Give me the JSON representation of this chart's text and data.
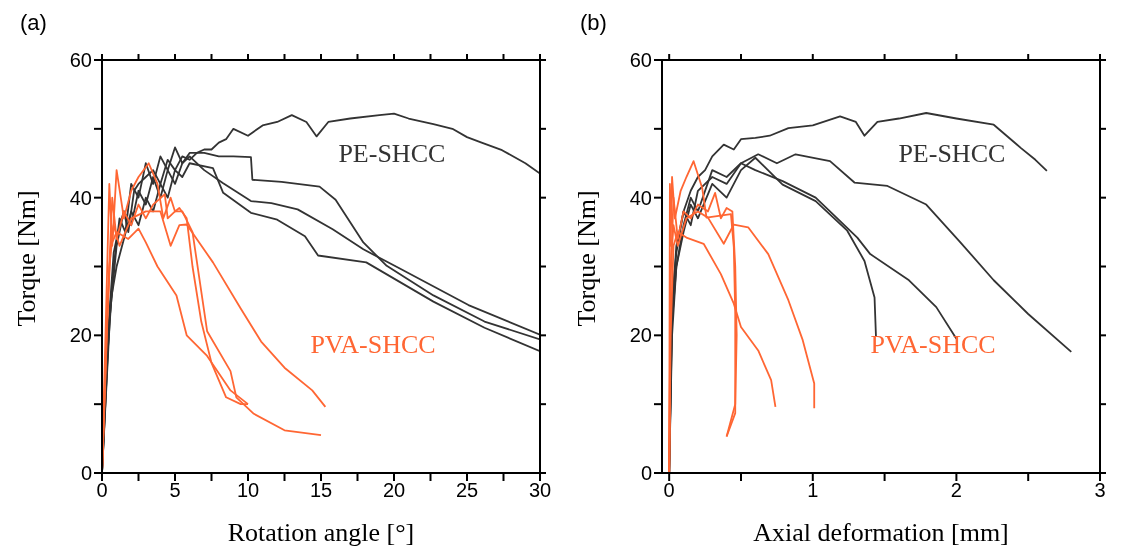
{
  "chart_data": [
    {
      "type": "line",
      "title": "(a)",
      "xlabel": "Rotation angle [°]",
      "ylabel": "Torque [Nm]",
      "xlim": [
        0,
        30
      ],
      "ylim": [
        0,
        60
      ],
      "xticks": [
        0,
        {
          "value": 2.5,
          "label": null
        },
        5,
        {
          "value": 7.5,
          "label": null
        },
        10,
        {
          "value": 12.5,
          "label": null
        },
        15,
        {
          "value": 17.5,
          "label": null
        },
        20,
        {
          "value": 22.5,
          "label": null
        },
        25,
        {
          "value": 27.5,
          "label": null
        },
        30
      ],
      "yticks": [
        0,
        {
          "value": 10,
          "label": null
        },
        20,
        {
          "value": 30,
          "label": null
        },
        40,
        {
          "value": 50,
          "label": null
        },
        60
      ],
      "annotations": [
        "PE-SHCC",
        "PVA-SHCC"
      ],
      "series": [
        {
          "color": "#333333",
          "x": [
            0,
            0.4,
            0.8,
            1.2,
            1.5,
            1.8,
            2.2,
            2.5,
            3,
            3.5,
            4,
            4.5,
            5,
            5.5,
            6,
            6.5,
            7,
            7.5,
            8,
            8.5,
            9,
            10,
            11,
            12,
            13,
            14,
            14.7,
            15.5,
            17,
            19,
            20,
            21,
            22.7,
            24,
            25,
            26,
            27.4,
            29,
            30
          ],
          "values": [
            0,
            20,
            32,
            36,
            38,
            35,
            41,
            42,
            43,
            44,
            42,
            45.5,
            44,
            46,
            45.5,
            46.5,
            47,
            47,
            48,
            48.5,
            50,
            49,
            50.5,
            51,
            52,
            51,
            48.9,
            51,
            51.5,
            52,
            52.2,
            51.5,
            50.7,
            50,
            48.8,
            48,
            46.9,
            45,
            43.5
          ]
        },
        {
          "color": "#333333",
          "x": [
            0,
            0.4,
            0.8,
            1.2,
            1.6,
            2,
            2.5,
            3,
            3.5,
            4,
            4.5,
            5,
            5.5,
            6,
            7,
            8,
            9,
            10.2,
            10.3,
            12.3,
            14.9,
            16,
            17.9,
            19.5,
            22.7,
            26.2,
            30
          ],
          "values": [
            0,
            18,
            30,
            37,
            35,
            42,
            40,
            45,
            42,
            46,
            44,
            47.3,
            45,
            46.5,
            46.5,
            46,
            46,
            45.9,
            42.6,
            42.3,
            41.6,
            39.7,
            33.5,
            30.1,
            25.8,
            22,
            19.4
          ]
        },
        {
          "color": "#333333",
          "x": [
            0,
            0.5,
            1,
            1.5,
            2,
            2.5,
            3,
            3.5,
            4,
            4.5,
            5,
            5.5,
            6,
            7,
            8.3,
            10.2,
            11.6,
            13.4,
            15.8,
            17.9,
            20.4,
            25.1,
            30
          ],
          "values": [
            0,
            22,
            33,
            38,
            36,
            41,
            39,
            43,
            40,
            44,
            42,
            45,
            46,
            44,
            42.1,
            39.5,
            39.2,
            38.3,
            35.4,
            32.5,
            29.7,
            24.4,
            20.1
          ]
        },
        {
          "color": "#333333",
          "x": [
            0,
            0.6,
            1,
            1.5,
            2,
            2.5,
            3,
            3.5,
            4,
            4.5,
            5,
            5.5,
            6,
            7.6,
            8.3,
            10.2,
            12,
            13.9,
            14.8,
            18.1,
            22.7,
            26.2,
            30
          ],
          "values": [
            0,
            25,
            30,
            34,
            38,
            36,
            40,
            38,
            42,
            40,
            44,
            43,
            45,
            44.3,
            40.7,
            37.8,
            36.8,
            34.4,
            31.6,
            30.6,
            24.9,
            21.1,
            17.7
          ]
        },
        {
          "color": "#ff6633",
          "x": [
            0,
            0.3,
            0.6,
            1,
            1.8,
            2.5,
            3,
            3.8,
            5.1,
            5.8,
            7.2,
            8.8,
            10
          ],
          "values": [
            0,
            20,
            33,
            35,
            34,
            35.5,
            33.5,
            30,
            25.8,
            20,
            17,
            12,
            10
          ]
        },
        {
          "color": "#ff6633",
          "x": [
            0,
            0.4,
            0.7,
            1,
            1.5,
            2,
            2.5,
            3,
            3.5,
            4.3,
            4.5,
            5,
            5.5,
            6.2,
            7.2,
            8.8,
            9.2,
            10.4,
            12.5,
            15
          ],
          "values": [
            0,
            25,
            40,
            34,
            38,
            36,
            39,
            37,
            39,
            40.5,
            37,
            38,
            38,
            35,
            20.6,
            14.8,
            11,
            8.6,
            6.2,
            5.5
          ]
        },
        {
          "color": "#ff6633",
          "x": [
            0,
            0.5,
            0.8,
            1.2,
            2,
            3,
            4,
            4.7,
            5.3,
            5.8,
            7.6,
            9.5,
            10.9,
            12.5,
            14.4,
            15.3
          ],
          "values": [
            0,
            30,
            36,
            33,
            37,
            38,
            38,
            33,
            36,
            36.1,
            30.6,
            23.9,
            19.1,
            15.3,
            12,
            9.6
          ]
        },
        {
          "color": "#ff6633",
          "x": [
            0,
            0.5,
            0.7,
            1,
            1.5,
            2,
            2.5,
            3.2,
            3.8,
            4.2,
            4.7,
            5,
            5.3,
            5.8,
            6.2,
            6.8,
            7.5,
            8.5,
            9.5,
            10
          ],
          "values": [
            0,
            42,
            33,
            44,
            37,
            41,
            43,
            45,
            42,
            37,
            40,
            38,
            38.5,
            37,
            30,
            22,
            16,
            11,
            10,
            10
          ]
        }
      ]
    },
    {
      "type": "line",
      "title": "(b)",
      "xlabel": "Axial deformation [mm]",
      "ylabel": "Torque [Nm]",
      "xlim": [
        -0.05,
        3
      ],
      "ylim": [
        0,
        60
      ],
      "xticks": [
        0,
        {
          "value": 0.5,
          "label": null
        },
        1,
        {
          "value": 1.5,
          "label": null
        },
        2,
        {
          "value": 2.5,
          "label": null
        },
        3
      ],
      "yticks": [
        0,
        {
          "value": 10,
          "label": null
        },
        20,
        {
          "value": 30,
          "label": null
        },
        40,
        {
          "value": 50,
          "label": null
        },
        60
      ],
      "annotations": [
        "PE-SHCC",
        "PVA-SHCC"
      ],
      "series": [
        {
          "color": "#333333",
          "x": [
            0,
            0.02,
            0.05,
            0.1,
            0.15,
            0.2,
            0.25,
            0.3,
            0.38,
            0.45,
            0.5,
            0.6,
            0.7,
            0.83,
            1,
            1.19,
            1.3,
            1.36,
            1.45,
            1.6,
            1.79,
            2,
            2.26,
            2.45,
            2.55,
            2.63
          ],
          "values": [
            0,
            25,
            32,
            38,
            41,
            43,
            44,
            46,
            47.7,
            47,
            48.5,
            48.7,
            49,
            50.1,
            50.5,
            51.8,
            51,
            49,
            51,
            51.5,
            52.3,
            51.5,
            50.6,
            47.2,
            45.5,
            43.9
          ]
        },
        {
          "color": "#333333",
          "x": [
            0,
            0.02,
            0.05,
            0.1,
            0.15,
            0.2,
            0.3,
            0.4,
            0.5,
            0.62,
            0.75,
            0.88,
            1.12,
            1.29,
            1.52,
            1.79,
            2.02,
            2.26,
            2.5,
            2.8
          ],
          "values": [
            0,
            22,
            30,
            36,
            40,
            38,
            44,
            43,
            45,
            46.3,
            45,
            46.3,
            45.3,
            42.2,
            41.7,
            39,
            33.7,
            28,
            23.1,
            17.6
          ]
        },
        {
          "color": "#333333",
          "x": [
            0,
            0.02,
            0.05,
            0.1,
            0.15,
            0.2,
            0.3,
            0.4,
            0.5,
            0.6,
            0.79,
            1.02,
            1.31,
            1.4,
            1.67,
            1.86,
            2
          ],
          "values": [
            0,
            24,
            33,
            38,
            36,
            41,
            43,
            42,
            45,
            44,
            42.4,
            40,
            34.2,
            31.8,
            28,
            24.1,
            19.5
          ]
        },
        {
          "color": "#333333",
          "x": [
            0,
            0.02,
            0.05,
            0.1,
            0.15,
            0.2,
            0.3,
            0.4,
            0.5,
            0.6,
            0.79,
            1.02,
            1.24,
            1.36,
            1.43,
            1.44
          ],
          "values": [
            0,
            20,
            30,
            35,
            39,
            37,
            42,
            40,
            44,
            45.8,
            41.9,
            39.5,
            35.2,
            30.8,
            25.5,
            19.8
          ]
        },
        {
          "color": "#ff6633",
          "x": [
            0,
            0.01,
            0.03,
            0.06,
            0.12,
            0.24,
            0.36,
            0.45,
            0.5,
            0.62,
            0.71,
            0.74
          ],
          "values": [
            0,
            20,
            33,
            35,
            34.2,
            33.3,
            28.9,
            24.6,
            21.2,
            17.8,
            13.5,
            9.6
          ]
        },
        {
          "color": "#ff6633",
          "x": [
            0,
            0.01,
            0.03,
            0.06,
            0.1,
            0.15,
            0.2,
            0.27,
            0.32,
            0.36,
            0.4,
            0.44,
            0.46,
            0.47,
            0.46,
            0.4
          ],
          "values": [
            0,
            28,
            40,
            34,
            38,
            37,
            39,
            38,
            40.7,
            37,
            38.5,
            38,
            30,
            20,
            10,
            5.3
          ]
        },
        {
          "color": "#ff6633",
          "x": [
            0,
            0.01,
            0.03,
            0.06,
            0.12,
            0.2,
            0.27,
            0.38,
            0.45,
            0.55,
            0.69,
            0.83,
            0.93,
            1.01,
            1.01
          ],
          "values": [
            0,
            30,
            36,
            33,
            37,
            38,
            37.1,
            33.3,
            36.1,
            35.7,
            31.8,
            25.1,
            19.3,
            13,
            9.4
          ]
        },
        {
          "color": "#ff6633",
          "x": [
            0,
            0.005,
            0.01,
            0.02,
            0.04,
            0.08,
            0.12,
            0.17,
            0.23,
            0.26,
            0.43,
            0.45,
            0.46,
            0.46,
            0.4
          ],
          "values": [
            0,
            42,
            33,
            43,
            37,
            41,
            43,
            45.3,
            41.4,
            37.1,
            37.6,
            32.8,
            23.1,
            8.7,
            5.3
          ]
        }
      ]
    }
  ]
}
